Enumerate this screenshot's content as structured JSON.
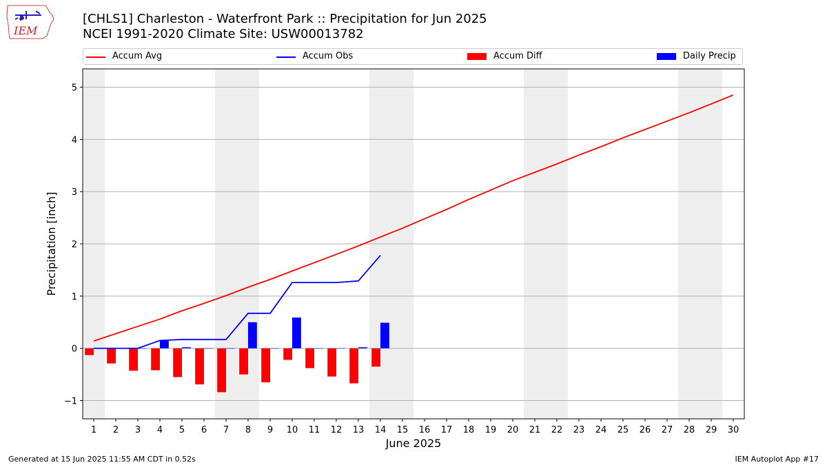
{
  "header": {
    "title_line1": "[CHLS1] Charleston - Waterfront Park :: Precipitation for Jun 2025",
    "title_line2": "NCEI 1991-2020 Climate Site: USW00013782",
    "logo_text": "IEM"
  },
  "footer": {
    "left": "Generated at 15 Jun 2025 11:55 AM CDT in 0.52s",
    "right": "IEM Autoplot App #17"
  },
  "legend": {
    "placement": "top",
    "items": [
      {
        "label": "Accum Avg",
        "kind": "line",
        "color": "#ff0000"
      },
      {
        "label": "Accum Obs",
        "kind": "line",
        "color": "#0000ff"
      },
      {
        "label": "Accum Diff",
        "kind": "patch",
        "color": "#ff0000"
      },
      {
        "label": "Daily Precip",
        "kind": "patch",
        "color": "#0000ff"
      }
    ]
  },
  "chart_data": {
    "type": "bar",
    "title": "[CHLS1] Charleston - Waterfront Park :: Precipitation for Jun 2025",
    "xlabel": "June 2025",
    "ylabel": "Precipitation [inch]",
    "xlim": [
      0.5,
      30.5
    ],
    "ylim": [
      -1.35,
      5.35
    ],
    "x_ticks": [
      1,
      2,
      3,
      4,
      5,
      6,
      7,
      8,
      9,
      10,
      11,
      12,
      13,
      14,
      15,
      16,
      17,
      18,
      19,
      20,
      21,
      22,
      23,
      24,
      25,
      26,
      27,
      28,
      29,
      30
    ],
    "y_ticks": [
      -1,
      0,
      1,
      2,
      3,
      4,
      5
    ],
    "y_tick_labels": [
      "−1",
      "0",
      "1",
      "2",
      "3",
      "4",
      "5"
    ],
    "grid": "y",
    "weekend_shading": [
      [
        0.5,
        1.5
      ],
      [
        6.5,
        8.5
      ],
      [
        13.5,
        15.5
      ],
      [
        20.5,
        22.5
      ],
      [
        27.5,
        29.5
      ]
    ],
    "shading_color": "#eeeeee",
    "series": [
      {
        "name": "Accum Avg",
        "kind": "line",
        "color": "#ff0000",
        "x": [
          1,
          2,
          3,
          4,
          5,
          6,
          7,
          8,
          9,
          10,
          11,
          12,
          13,
          14,
          15,
          16,
          17,
          18,
          19,
          20,
          21,
          22,
          23,
          24,
          25,
          26,
          27,
          28,
          29,
          30
        ],
        "values": [
          0.14,
          0.28,
          0.42,
          0.56,
          0.72,
          0.86,
          1.01,
          1.17,
          1.32,
          1.48,
          1.64,
          1.8,
          1.96,
          2.13,
          2.3,
          2.48,
          2.66,
          2.85,
          3.03,
          3.21,
          3.37,
          3.53,
          3.7,
          3.86,
          4.03,
          4.19,
          4.35,
          4.51,
          4.68,
          4.85
        ]
      },
      {
        "name": "Accum Obs",
        "kind": "line",
        "color": "#0000ff",
        "x": [
          1,
          2,
          3,
          4,
          5,
          6,
          7,
          8,
          9,
          10,
          11,
          12,
          13,
          14
        ],
        "values": [
          0.0,
          0.0,
          0.0,
          0.15,
          0.17,
          0.17,
          0.17,
          0.67,
          0.67,
          1.26,
          1.26,
          1.26,
          1.29,
          1.78
        ]
      },
      {
        "name": "Accum Diff",
        "kind": "bar",
        "color": "#ff0000",
        "x": [
          1,
          2,
          3,
          4,
          5,
          6,
          7,
          8,
          9,
          10,
          11,
          12,
          13,
          14
        ],
        "values": [
          -0.13,
          -0.29,
          -0.43,
          -0.42,
          -0.55,
          -0.69,
          -0.84,
          -0.5,
          -0.65,
          -0.22,
          -0.38,
          -0.54,
          -0.67,
          -0.35
        ]
      },
      {
        "name": "Daily Precip",
        "kind": "bar",
        "color": "#0000ff",
        "x": [
          1,
          2,
          3,
          4,
          5,
          6,
          7,
          8,
          9,
          10,
          11,
          12,
          13,
          14
        ],
        "values": [
          0.0,
          0.0,
          0.0,
          0.15,
          0.02,
          0.0,
          0.0,
          0.5,
          0.0,
          0.59,
          0.0,
          0.0,
          0.02,
          0.49
        ]
      }
    ]
  }
}
